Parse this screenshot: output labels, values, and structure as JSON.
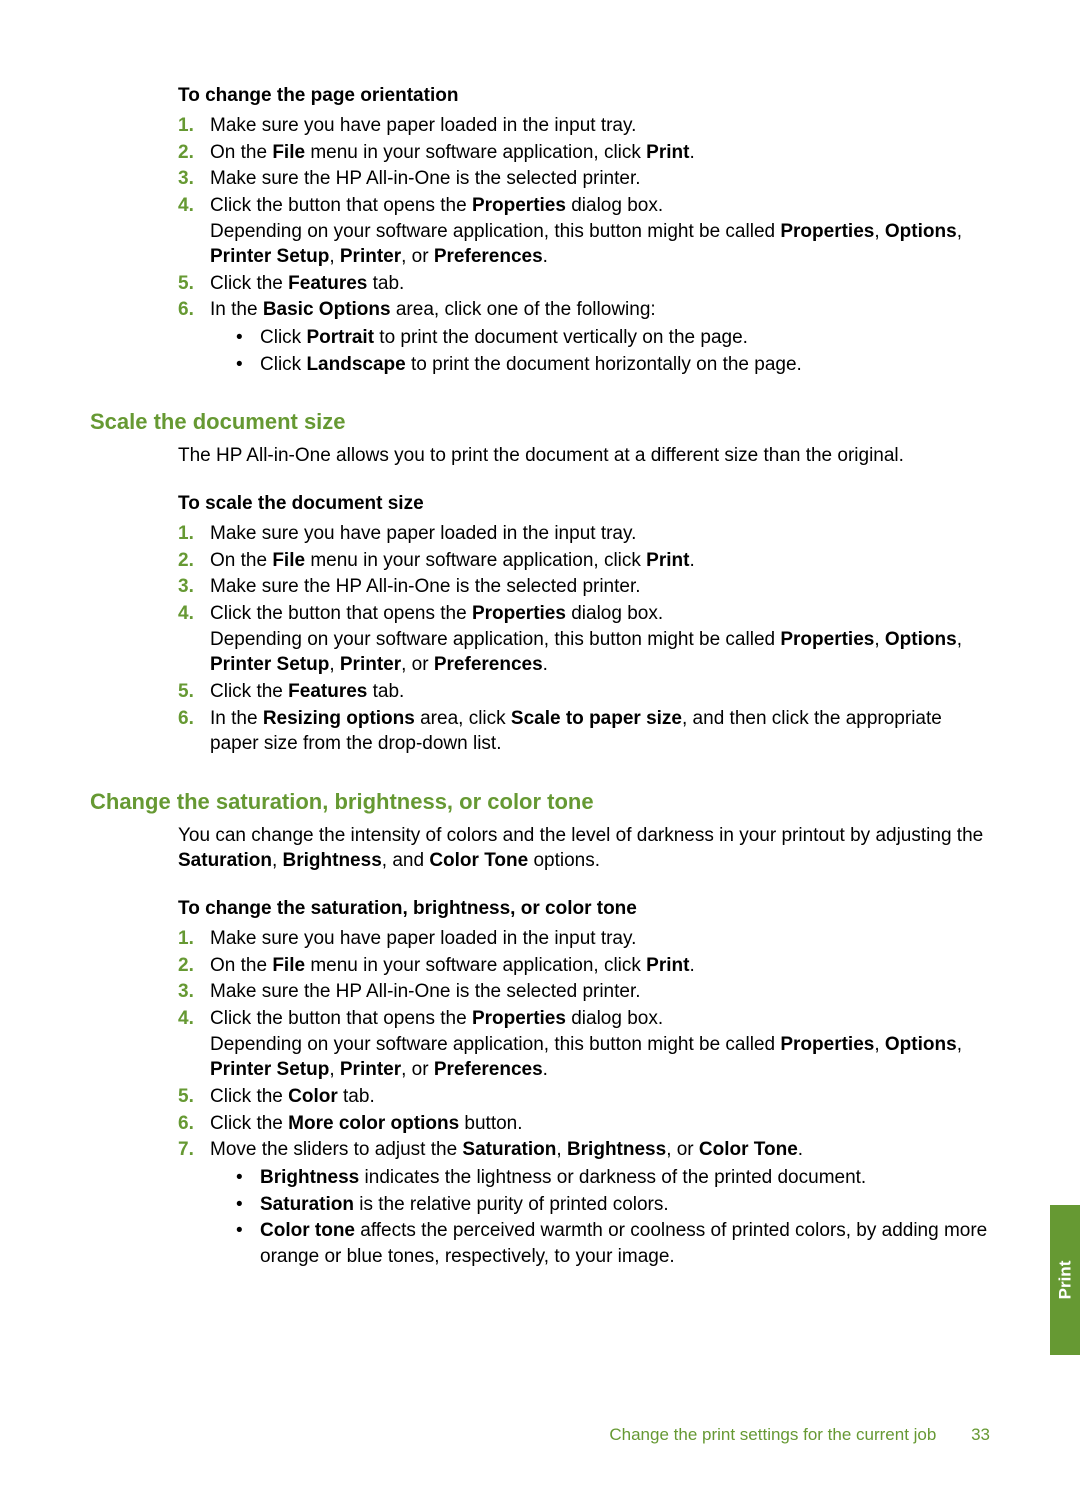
{
  "section1": {
    "heading": "To change the page orientation",
    "items": [
      {
        "html": "Make sure you have paper loaded in the input tray."
      },
      {
        "html": "On the <b>File</b> menu in your software application, click <b>Print</b>."
      },
      {
        "html": "Make sure the HP All-in-One is the selected printer."
      },
      {
        "html": "Click the button that opens the <b>Properties</b> dialog box.<br>Depending on your software application, this button might be called <b>Properties</b>, <b>Options</b>, <b>Printer Setup</b>, <b>Printer</b>, or <b>Preferences</b>."
      },
      {
        "html": "Click the <b>Features</b> tab."
      },
      {
        "html": "In the <b>Basic Options</b> area, click one of the following:",
        "subitems": [
          {
            "html": "Click <b>Portrait</b> to print the document vertically on the page."
          },
          {
            "html": "Click <b>Landscape</b> to print the document horizontally on the page."
          }
        ]
      }
    ]
  },
  "section2": {
    "title": "Scale the document size",
    "intro": "The HP All-in-One allows you to print the document at a different size than the original.",
    "heading": "To scale the document size",
    "items": [
      {
        "html": "Make sure you have paper loaded in the input tray."
      },
      {
        "html": "On the <b>File</b> menu in your software application, click <b>Print</b>."
      },
      {
        "html": "Make sure the HP All-in-One is the selected printer."
      },
      {
        "html": "Click the button that opens the <b>Properties</b> dialog box.<br>Depending on your software application, this button might be called <b>Properties</b>, <b>Options</b>, <b>Printer Setup</b>, <b>Printer</b>, or <b>Preferences</b>."
      },
      {
        "html": "Click the <b>Features</b> tab."
      },
      {
        "html": "In the <b>Resizing options</b> area, click <b>Scale to paper size</b>, and then click the appropriate paper size from the drop-down list."
      }
    ]
  },
  "section3": {
    "title": "Change the saturation, brightness, or color tone",
    "intro_html": "You can change the intensity of colors and the level of darkness in your printout by adjusting the <b>Saturation</b>, <b>Brightness</b>, and <b>Color Tone</b> options.",
    "heading": "To change the saturation, brightness, or color tone",
    "items": [
      {
        "html": "Make sure you have paper loaded in the input tray."
      },
      {
        "html": "On the <b>File</b> menu in your software application, click <b>Print</b>."
      },
      {
        "html": "Make sure the HP All-in-One is the selected printer."
      },
      {
        "html": "Click the button that opens the <b>Properties</b> dialog box.<br>Depending on your software application, this button might be called <b>Properties</b>, <b>Options</b>, <b>Printer Setup</b>, <b>Printer</b>, or <b>Preferences</b>."
      },
      {
        "html": "Click the <b>Color</b> tab."
      },
      {
        "html": "Click the <b>More color options</b> button."
      },
      {
        "html": "Move the sliders to adjust the <b>Saturation</b>, <b>Brightness</b>, or <b>Color Tone</b>.",
        "subitems": [
          {
            "html": "<b>Brightness</b> indicates the lightness or darkness of the printed document."
          },
          {
            "html": "<b>Saturation</b> is the relative purity of printed colors."
          },
          {
            "html": "<b>Color tone</b> affects the perceived warmth or coolness of printed colors, by adding more orange or blue tones, respectively, to your image."
          }
        ]
      }
    ]
  },
  "sideTab": "Print",
  "footer": {
    "text": "Change the print settings for the current job",
    "page": "33"
  }
}
